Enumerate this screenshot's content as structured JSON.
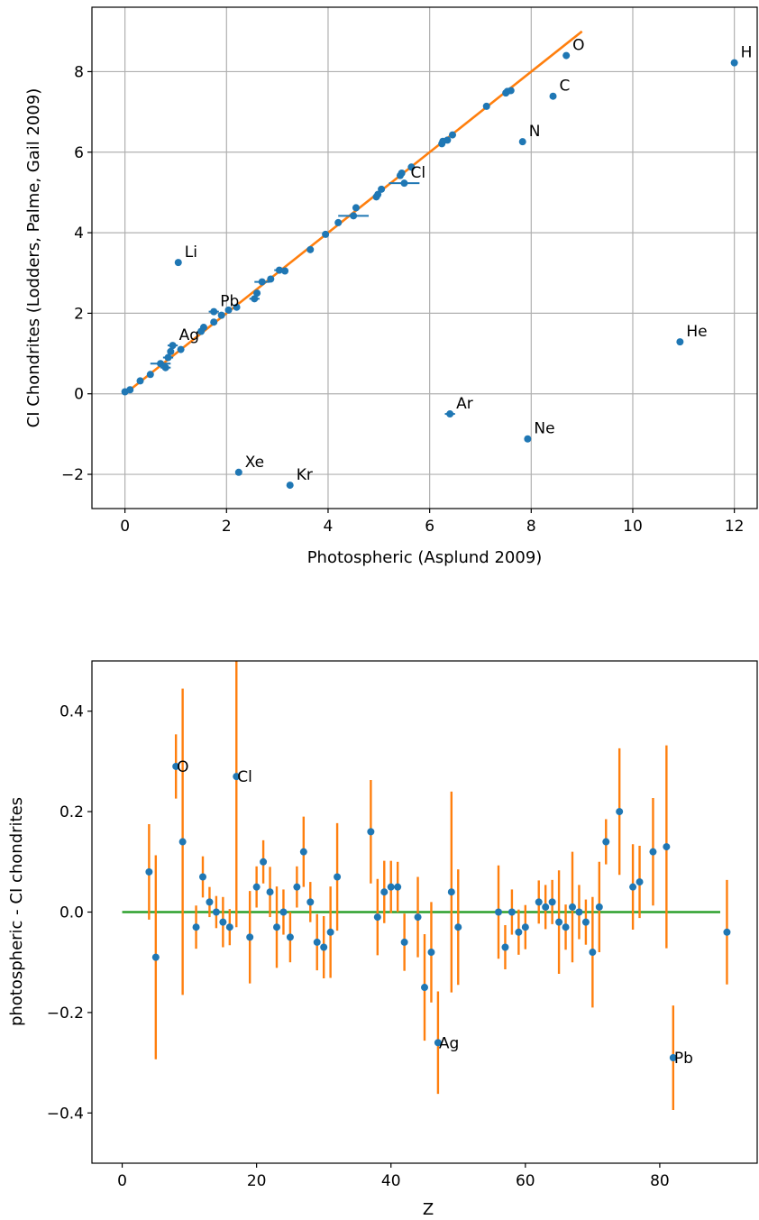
{
  "chart_data": [
    {
      "type": "scatter",
      "xlabel": "Photospheric (Asplund 2009)",
      "ylabel": "CI Chondrites (Lodders, Palme, Gail 2009)",
      "xlim": [
        -0.65,
        12.45
      ],
      "ylim": [
        -2.85,
        9.6
      ],
      "xticks": [
        0,
        2,
        4,
        6,
        8,
        10,
        12
      ],
      "yticks": [
        -2,
        0,
        2,
        4,
        6,
        8
      ],
      "grid": true,
      "colors": {
        "points": "#1f77b4",
        "line": "#ff7f0e"
      },
      "fit_line": {
        "x": [
          0,
          9
        ],
        "y": [
          0,
          9
        ]
      },
      "points": [
        {
          "x": 12.0,
          "y": 8.22,
          "xerr": 0,
          "label": "H"
        },
        {
          "x": 10.93,
          "y": 1.29,
          "xerr": 0,
          "label": "He"
        },
        {
          "x": 1.05,
          "y": 3.26,
          "xerr": 0.05,
          "label": "Li"
        },
        {
          "x": 8.43,
          "y": 7.39,
          "xerr": 0,
          "label": "C"
        },
        {
          "x": 7.83,
          "y": 6.26,
          "xerr": 0,
          "label": "N"
        },
        {
          "x": 8.69,
          "y": 8.4,
          "xerr": 0,
          "label": "O"
        },
        {
          "x": 7.93,
          "y": -1.12,
          "xerr": 0.05,
          "label": "Ne"
        },
        {
          "x": 6.4,
          "y": -0.5,
          "xerr": 0.1,
          "label": "Ar"
        },
        {
          "x": 3.25,
          "y": -2.27,
          "xerr": 0,
          "label": "Kr"
        },
        {
          "x": 2.24,
          "y": -1.95,
          "xerr": 0,
          "label": "Xe"
        },
        {
          "x": 5.5,
          "y": 5.23,
          "xerr": 0.3,
          "label": "Cl"
        },
        {
          "x": 0.94,
          "y": 1.2,
          "xerr": 0.1,
          "label": "Ag"
        },
        {
          "x": 1.75,
          "y": 2.04,
          "xerr": 0.1,
          "label": "Pb"
        },
        {
          "x": 0.0,
          "y": 0.05,
          "xerr": 0,
          "label": ""
        },
        {
          "x": 0.1,
          "y": 0.1,
          "xerr": 0,
          "label": ""
        },
        {
          "x": 0.3,
          "y": 0.32,
          "xerr": 0,
          "label": ""
        },
        {
          "x": 0.5,
          "y": 0.48,
          "xerr": 0,
          "label": ""
        },
        {
          "x": 0.7,
          "y": 0.75,
          "xerr": 0.2,
          "label": ""
        },
        {
          "x": 0.8,
          "y": 0.65,
          "xerr": 0.1,
          "label": ""
        },
        {
          "x": 0.85,
          "y": 0.9,
          "xerr": 0.1,
          "label": ""
        },
        {
          "x": 0.9,
          "y": 1.05,
          "xerr": 0,
          "label": ""
        },
        {
          "x": 1.1,
          "y": 1.1,
          "xerr": 0,
          "label": ""
        },
        {
          "x": 1.5,
          "y": 1.55,
          "xerr": 0,
          "label": ""
        },
        {
          "x": 1.55,
          "y": 1.65,
          "xerr": 0,
          "label": ""
        },
        {
          "x": 1.75,
          "y": 1.78,
          "xerr": 0,
          "label": ""
        },
        {
          "x": 1.9,
          "y": 1.95,
          "xerr": 0,
          "label": ""
        },
        {
          "x": 2.04,
          "y": 2.08,
          "xerr": 0,
          "label": ""
        },
        {
          "x": 2.2,
          "y": 2.15,
          "xerr": 0,
          "label": ""
        },
        {
          "x": 2.55,
          "y": 2.36,
          "xerr": 0.1,
          "label": ""
        },
        {
          "x": 2.6,
          "y": 2.5,
          "xerr": 0,
          "label": ""
        },
        {
          "x": 2.7,
          "y": 2.78,
          "xerr": 0.15,
          "label": ""
        },
        {
          "x": 2.87,
          "y": 2.85,
          "xerr": 0,
          "label": ""
        },
        {
          "x": 3.04,
          "y": 3.07,
          "xerr": 0.1,
          "label": ""
        },
        {
          "x": 3.15,
          "y": 3.05,
          "xerr": 0,
          "label": ""
        },
        {
          "x": 3.65,
          "y": 3.58,
          "xerr": 0,
          "label": ""
        },
        {
          "x": 3.95,
          "y": 3.96,
          "xerr": 0,
          "label": ""
        },
        {
          "x": 4.2,
          "y": 4.25,
          "xerr": 0,
          "label": ""
        },
        {
          "x": 4.5,
          "y": 4.42,
          "xerr": 0.3,
          "label": ""
        },
        {
          "x": 4.55,
          "y": 4.62,
          "xerr": 0,
          "label": ""
        },
        {
          "x": 4.95,
          "y": 4.89,
          "xerr": 0,
          "label": ""
        },
        {
          "x": 4.98,
          "y": 4.95,
          "xerr": 0,
          "label": ""
        },
        {
          "x": 5.05,
          "y": 5.08,
          "xerr": 0,
          "label": ""
        },
        {
          "x": 5.42,
          "y": 5.42,
          "xerr": 0,
          "label": ""
        },
        {
          "x": 5.45,
          "y": 5.48,
          "xerr": 0,
          "label": ""
        },
        {
          "x": 5.64,
          "y": 5.63,
          "xerr": 0,
          "label": ""
        },
        {
          "x": 6.24,
          "y": 6.21,
          "xerr": 0,
          "label": ""
        },
        {
          "x": 6.26,
          "y": 6.27,
          "xerr": 0,
          "label": ""
        },
        {
          "x": 6.35,
          "y": 6.3,
          "xerr": 0,
          "label": ""
        },
        {
          "x": 6.45,
          "y": 6.43,
          "xerr": 0,
          "label": ""
        },
        {
          "x": 7.12,
          "y": 7.14,
          "xerr": 0,
          "label": ""
        },
        {
          "x": 7.5,
          "y": 7.47,
          "xerr": 0,
          "label": ""
        },
        {
          "x": 7.53,
          "y": 7.51,
          "xerr": 0,
          "label": ""
        },
        {
          "x": 7.6,
          "y": 7.53,
          "xerr": 0,
          "label": ""
        }
      ]
    },
    {
      "type": "scatter",
      "xlabel": "Z",
      "ylabel": "photospheric - CI chondrites",
      "xlim": [
        -4.5,
        94.5
      ],
      "ylim": [
        -0.5,
        0.5
      ],
      "xticks": [
        0,
        20,
        40,
        60,
        80
      ],
      "yticks": [
        -0.4,
        -0.2,
        0.0,
        0.2,
        0.4
      ],
      "grid": false,
      "colors": {
        "points": "#1f77b4",
        "errorbars": "#ff7f0e",
        "zero_line": "#2ca02c"
      },
      "zero_line": {
        "x": [
          0,
          89
        ],
        "y": 0
      },
      "points": [
        {
          "x": 4,
          "y": 0.08,
          "err": 0.095,
          "label": ""
        },
        {
          "x": 5,
          "y": -0.09,
          "err": 0.203,
          "label": ""
        },
        {
          "x": 8,
          "y": 0.29,
          "err": 0.064,
          "label": "O"
        },
        {
          "x": 9,
          "y": 0.14,
          "err": 0.305,
          "label": ""
        },
        {
          "x": 11,
          "y": -0.03,
          "err": 0.043,
          "label": ""
        },
        {
          "x": 12,
          "y": 0.07,
          "err": 0.041,
          "label": ""
        },
        {
          "x": 13,
          "y": 0.02,
          "err": 0.03,
          "label": ""
        },
        {
          "x": 14,
          "y": 0.0,
          "err": 0.032,
          "label": ""
        },
        {
          "x": 15,
          "y": -0.02,
          "err": 0.05,
          "label": ""
        },
        {
          "x": 16,
          "y": -0.03,
          "err": 0.036,
          "label": ""
        },
        {
          "x": 17,
          "y": 0.27,
          "err": 0.3,
          "label": "Cl"
        },
        {
          "x": 19,
          "y": -0.05,
          "err": 0.092,
          "label": ""
        },
        {
          "x": 20,
          "y": 0.05,
          "err": 0.041,
          "label": ""
        },
        {
          "x": 21,
          "y": 0.1,
          "err": 0.043,
          "label": ""
        },
        {
          "x": 22,
          "y": 0.04,
          "err": 0.05,
          "label": ""
        },
        {
          "x": 23,
          "y": -0.03,
          "err": 0.081,
          "label": ""
        },
        {
          "x": 24,
          "y": 0.0,
          "err": 0.045,
          "label": ""
        },
        {
          "x": 25,
          "y": -0.05,
          "err": 0.05,
          "label": ""
        },
        {
          "x": 26,
          "y": 0.05,
          "err": 0.041,
          "label": ""
        },
        {
          "x": 27,
          "y": 0.12,
          "err": 0.07,
          "label": ""
        },
        {
          "x": 28,
          "y": 0.02,
          "err": 0.04,
          "label": ""
        },
        {
          "x": 29,
          "y": -0.06,
          "err": 0.056,
          "label": ""
        },
        {
          "x": 30,
          "y": -0.07,
          "err": 0.062,
          "label": ""
        },
        {
          "x": 31,
          "y": -0.04,
          "err": 0.091,
          "label": ""
        },
        {
          "x": 32,
          "y": 0.07,
          "err": 0.107,
          "label": ""
        },
        {
          "x": 37,
          "y": 0.16,
          "err": 0.103,
          "label": ""
        },
        {
          "x": 38,
          "y": -0.01,
          "err": 0.076,
          "label": ""
        },
        {
          "x": 39,
          "y": 0.04,
          "err": 0.062,
          "label": ""
        },
        {
          "x": 40,
          "y": 0.05,
          "err": 0.052,
          "label": ""
        },
        {
          "x": 41,
          "y": 0.05,
          "err": 0.05,
          "label": ""
        },
        {
          "x": 42,
          "y": -0.06,
          "err": 0.057,
          "label": ""
        },
        {
          "x": 44,
          "y": -0.01,
          "err": 0.08,
          "label": ""
        },
        {
          "x": 45,
          "y": -0.15,
          "err": 0.106,
          "label": ""
        },
        {
          "x": 46,
          "y": -0.08,
          "err": 0.1,
          "label": ""
        },
        {
          "x": 47,
          "y": -0.26,
          "err": 0.102,
          "label": "Ag"
        },
        {
          "x": 49,
          "y": 0.04,
          "err": 0.2,
          "label": ""
        },
        {
          "x": 50,
          "y": -0.03,
          "err": 0.115,
          "label": ""
        },
        {
          "x": 56,
          "y": 0.0,
          "err": 0.093,
          "label": ""
        },
        {
          "x": 57,
          "y": -0.07,
          "err": 0.044,
          "label": ""
        },
        {
          "x": 58,
          "y": 0.0,
          "err": 0.045,
          "label": ""
        },
        {
          "x": 59,
          "y": -0.04,
          "err": 0.045,
          "label": ""
        },
        {
          "x": 60,
          "y": -0.03,
          "err": 0.044,
          "label": ""
        },
        {
          "x": 62,
          "y": 0.02,
          "err": 0.043,
          "label": ""
        },
        {
          "x": 63,
          "y": 0.01,
          "err": 0.044,
          "label": ""
        },
        {
          "x": 64,
          "y": 0.02,
          "err": 0.044,
          "label": ""
        },
        {
          "x": 65,
          "y": -0.02,
          "err": 0.103,
          "label": ""
        },
        {
          "x": 66,
          "y": -0.03,
          "err": 0.045,
          "label": ""
        },
        {
          "x": 67,
          "y": 0.01,
          "err": 0.11,
          "label": ""
        },
        {
          "x": 68,
          "y": 0.0,
          "err": 0.054,
          "label": ""
        },
        {
          "x": 69,
          "y": -0.02,
          "err": 0.045,
          "label": ""
        },
        {
          "x": 70,
          "y": -0.08,
          "err": 0.11,
          "label": ""
        },
        {
          "x": 71,
          "y": 0.01,
          "err": 0.09,
          "label": ""
        },
        {
          "x": 72,
          "y": 0.14,
          "err": 0.045,
          "label": ""
        },
        {
          "x": 74,
          "y": 0.2,
          "err": 0.126,
          "label": ""
        },
        {
          "x": 76,
          "y": 0.05,
          "err": 0.085,
          "label": ""
        },
        {
          "x": 77,
          "y": 0.06,
          "err": 0.072,
          "label": ""
        },
        {
          "x": 79,
          "y": 0.12,
          "err": 0.107,
          "label": ""
        },
        {
          "x": 81,
          "y": 0.13,
          "err": 0.202,
          "label": ""
        },
        {
          "x": 82,
          "y": -0.29,
          "err": 0.104,
          "label": "Pb"
        },
        {
          "x": 90,
          "y": -0.04,
          "err": 0.104,
          "label": ""
        }
      ]
    }
  ]
}
